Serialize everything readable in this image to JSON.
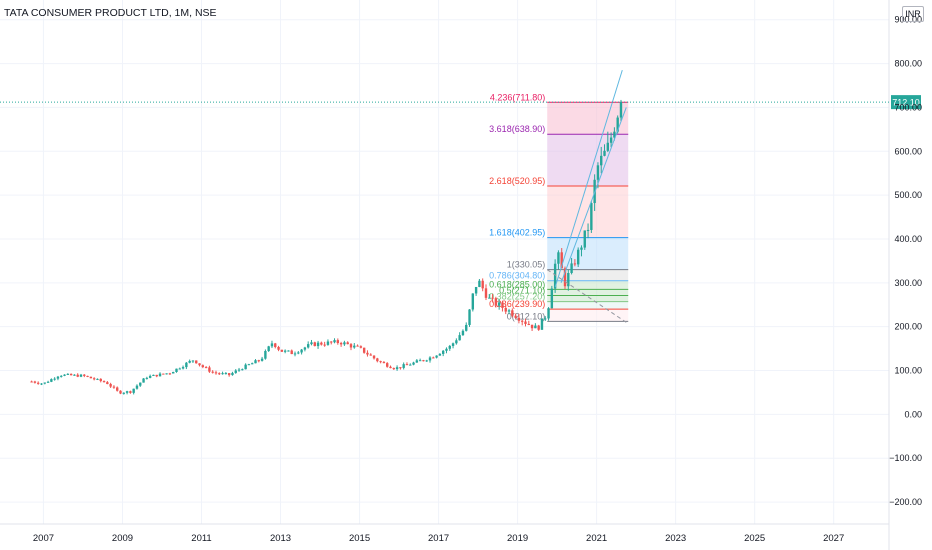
{
  "header": {
    "title": "TATA CONSUMER PRODUCT LTD, 1M, NSE",
    "currency": "INR"
  },
  "colors": {
    "up": "#26a69a",
    "down": "#ef5350",
    "grid": "#f0f3fa",
    "axis_text": "#131722",
    "price_line": "#26a69a",
    "channel": "#5fb8e0",
    "fib_level_1": "#787b86",
    "fib_level_0786": "#64b5f6",
    "fib_level_0618": "#4caf50",
    "fib_level_05": "#4caf50",
    "fib_level_0382": "#81c784",
    "fib_level_0236": "#f44336",
    "fib_level_0": "#787b86",
    "fib_level_1618": "#2196f3",
    "fib_level_2618": "#f44336",
    "fib_level_3618": "#9c27b0",
    "fib_level_4236": "#e91e63"
  },
  "chart_data": {
    "type": "candlestick",
    "title": "TATA CONSUMER PRODUCT LTD, 1M, NSE",
    "currency": "INR",
    "x_ticks": [
      "2007",
      "2009",
      "2011",
      "2013",
      "2015",
      "2017",
      "2019",
      "2021",
      "2023",
      "2025",
      "2027"
    ],
    "y_ticks": [
      "900.00",
      "800.00",
      "700.00",
      "600.00",
      "500.00",
      "400.00",
      "300.00",
      "200.00",
      "100.00",
      "0.00",
      "−100.00",
      "−200.00"
    ],
    "ylim": [
      -250,
      945
    ],
    "xlim": [
      2005.9,
      2028.4
    ],
    "last_price": {
      "value": 712.1,
      "label": "712.10"
    },
    "price_checkpoints": [
      [
        2006.7,
        75
      ],
      [
        2007.0,
        70
      ],
      [
        2007.4,
        90
      ],
      [
        2008.0,
        88
      ],
      [
        2008.6,
        72
      ],
      [
        2008.9,
        50
      ],
      [
        2009.2,
        52
      ],
      [
        2009.6,
        85
      ],
      [
        2010.2,
        95
      ],
      [
        2010.8,
        125
      ],
      [
        2011.0,
        110
      ],
      [
        2011.3,
        95
      ],
      [
        2011.7,
        90
      ],
      [
        2012.0,
        105
      ],
      [
        2012.5,
        125
      ],
      [
        2012.8,
        165
      ],
      [
        2013.0,
        145
      ],
      [
        2013.3,
        140
      ],
      [
        2013.8,
        160
      ],
      [
        2014.5,
        165
      ],
      [
        2015.0,
        150
      ],
      [
        2015.5,
        120
      ],
      [
        2015.9,
        105
      ],
      [
        2016.4,
        118
      ],
      [
        2016.8,
        130
      ],
      [
        2017.3,
        155
      ],
      [
        2017.7,
        200
      ],
      [
        2017.9,
        285
      ],
      [
        2018.0,
        305
      ],
      [
        2018.3,
        260
      ],
      [
        2018.9,
        230
      ],
      [
        2019.2,
        210
      ],
      [
        2019.5,
        195
      ],
      [
        2019.75,
        230
      ],
      [
        2020.0,
        370
      ],
      [
        2020.2,
        300
      ],
      [
        2020.5,
        360
      ],
      [
        2020.8,
        430
      ],
      [
        2021.0,
        560
      ],
      [
        2021.3,
        610
      ],
      [
        2021.6,
        712
      ]
    ],
    "fib_extension": {
      "x_start": 2019.75,
      "x_end": 2021.8,
      "levels": [
        {
          "ratio": "4.236",
          "price": 711.8,
          "label": "4.236(711.80)",
          "color": "#e91e63",
          "fill": "#f8bbd0"
        },
        {
          "ratio": "3.618",
          "price": 638.9,
          "label": "3.618(638.90)",
          "color": "#9c27b0",
          "fill": "#e1bee7"
        },
        {
          "ratio": "2.618",
          "price": 520.95,
          "label": "2.618(520.95)",
          "color": "#f44336",
          "fill": "#ffcdd2"
        },
        {
          "ratio": "1.618",
          "price": 402.95,
          "label": "1.618(402.95)",
          "color": "#2196f3",
          "fill": "#bbdefb"
        },
        {
          "ratio": "1",
          "price": 330.05,
          "label": "1(330.05)",
          "color": "#787b86",
          "fill": "#e0e0e0"
        },
        {
          "ratio": "0.786",
          "price": 304.8,
          "label": "0.786(304.80)",
          "color": "#64b5f6",
          "fill": "#c8e6c9"
        },
        {
          "ratio": "0.618",
          "price": 285.0,
          "label": "0.618(285.00)",
          "color": "#4caf50",
          "fill": "#c8e6c9"
        },
        {
          "ratio": "0.5",
          "price": 271.1,
          "label": "0.5(271.10)",
          "color": "#4caf50",
          "fill": "#c8e6c9"
        },
        {
          "ratio": "0.382",
          "price": 257.2,
          "label": "0.382(257.20)",
          "color": "#81c784",
          "fill": "#e0f2f1"
        },
        {
          "ratio": "0.236",
          "price": 239.9,
          "label": "0.236(239.90)",
          "color": "#f44336",
          "fill": "#ffebee"
        },
        {
          "ratio": "0",
          "price": 212.1,
          "label": "0(212.10)",
          "color": "#787b86",
          "fill": "#ffffff"
        }
      ]
    },
    "trendlines": [
      {
        "from": [
          2019.95,
          290
        ],
        "to": [
          2021.65,
          785
        ],
        "style": "solid"
      },
      {
        "from": [
          2020.1,
          300
        ],
        "to": [
          2021.75,
          700
        ],
        "style": "solid"
      },
      {
        "from": [
          2019.75,
          330
        ],
        "to": [
          2021.75,
          210
        ],
        "style": "dashed"
      }
    ]
  }
}
